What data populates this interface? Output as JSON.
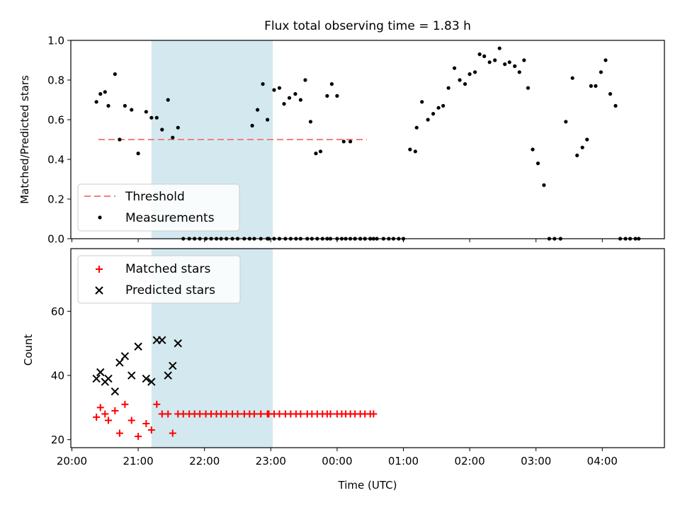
{
  "chart_data": [
    {
      "type": "scatter",
      "title": "Flux total observing time = 1.83 h",
      "xlabel": "",
      "ylabel": "Matched/Predicted stars",
      "x_ticks": [
        "20:00",
        "21:00",
        "22:00",
        "23:00",
        "00:00",
        "01:00",
        "02:00",
        "03:00",
        "04:00"
      ],
      "y_ticks": [
        "0.0",
        "0.2",
        "0.4",
        "0.6",
        "0.8",
        "1.0"
      ],
      "ylim": [
        0,
        1.0
      ],
      "legend_position": "lower-left",
      "highlight_span": {
        "x_start": 1.2,
        "x_end": 3.03,
        "color": "#d3e9ef"
      },
      "threshold": {
        "name": "Threshold",
        "value": 0.5,
        "x_start": 0.4,
        "x_end": 4.45,
        "color": "#f08080"
      },
      "series": [
        {
          "name": "Measurements",
          "color": "#000000",
          "marker": "dot",
          "x": [
            0.37,
            0.43,
            0.5,
            0.55,
            0.65,
            0.72,
            0.8,
            0.9,
            1.0,
            1.12,
            1.2,
            1.28,
            1.36,
            1.45,
            1.52,
            1.6,
            1.68,
            1.77,
            1.85,
            1.93,
            2.02,
            2.1,
            2.18,
            2.25,
            2.33,
            2.42,
            2.5,
            2.6,
            2.68,
            2.75,
            2.85,
            2.95,
            2.97,
            3.05,
            3.13,
            3.22,
            3.3,
            3.38,
            3.45,
            3.55,
            3.62,
            3.7,
            3.78,
            3.85,
            3.9,
            4.0,
            4.07,
            4.13,
            4.2,
            4.27,
            4.35,
            4.42,
            4.5,
            4.55
          ],
          "y": [
            0.69,
            0.73,
            0.74,
            0.67,
            0.83,
            0.5,
            0.67,
            0.65,
            0.43,
            0.64,
            0.61,
            0.61,
            0.55,
            0.7,
            0.51,
            0.56,
            0.0,
            0.0,
            0.0,
            0.0,
            0.0,
            0.0,
            0.0,
            0.0,
            0.0,
            0.0,
            0.0,
            0.0,
            0.0,
            0.0,
            0.0,
            0.0,
            0.0,
            0.0,
            0.0,
            0.0,
            0.0,
            0.0,
            0.0,
            0.0,
            0.0,
            0.0,
            0.0,
            0.0,
            0.0,
            0.0,
            0.0,
            0.0,
            0.0,
            0.0,
            0.0,
            0.0,
            0.0,
            0.0
          ]
        },
        {
          "name": "",
          "color": "#000000",
          "marker": "dot",
          "x": [
            22.72,
            22.8,
            22.88,
            22.95,
            23.05,
            23.13,
            23.2,
            23.28,
            23.37,
            23.45,
            23.52,
            23.6,
            23.68,
            23.75,
            23.85,
            23.92,
            24.0,
            24.1,
            24.2,
            24.27,
            24.35,
            24.42,
            24.5,
            24.6,
            24.7,
            24.78,
            24.85,
            24.93,
            25.0,
            25.1,
            25.18
          ],
          "y": [
            0.57,
            0.65,
            0.78,
            0.6,
            0.75,
            0.76,
            0.68,
            0.71,
            0.73,
            0.7,
            0.8,
            0.59,
            0.43,
            0.44,
            0.72,
            0.78,
            0.72,
            0.49,
            0.49,
            0.0,
            0.0,
            0.0,
            0.0,
            0.0,
            0.0,
            0.0,
            0.0,
            0.0,
            0.0,
            0.45,
            0.44
          ]
        },
        {
          "name": "",
          "color": "#000000",
          "marker": "dot",
          "x": [
            25.2,
            25.28,
            25.37,
            25.45,
            25.53,
            25.6,
            25.68,
            25.77,
            25.85,
            25.93,
            26.0,
            26.08,
            26.15,
            26.22,
            26.3,
            26.38,
            26.45,
            26.53,
            26.6,
            26.68,
            26.75,
            26.82,
            26.88,
            26.95,
            27.03,
            27.12,
            27.2,
            27.28,
            27.37,
            27.45,
            27.55,
            27.62,
            27.7,
            27.77,
            27.83,
            27.9,
            27.98,
            28.05,
            28.12,
            28.2,
            28.27,
            28.35,
            28.42,
            28.5,
            28.55
          ],
          "y": [
            0.56,
            0.69,
            0.6,
            0.63,
            0.66,
            0.67,
            0.76,
            0.86,
            0.8,
            0.78,
            0.83,
            0.84,
            0.93,
            0.92,
            0.89,
            0.9,
            0.96,
            0.88,
            0.89,
            0.87,
            0.84,
            0.9,
            0.76,
            0.45,
            0.38,
            0.27,
            0.0,
            0.0,
            0.0,
            0.59,
            0.81,
            0.42,
            0.46,
            0.5,
            0.77,
            0.77,
            0.84,
            0.9,
            0.73,
            0.67,
            0.0,
            0.0,
            0.0,
            0.0,
            0.0
          ]
        }
      ]
    },
    {
      "type": "scatter",
      "title": "",
      "xlabel": "Time (UTC)",
      "ylabel": "Count",
      "x_ticks": [
        "20:00",
        "21:00",
        "22:00",
        "23:00",
        "00:00",
        "01:00",
        "02:00",
        "03:00",
        "04:00"
      ],
      "y_ticks": [
        "20",
        "40",
        "60"
      ],
      "ylim": [
        17.5,
        79.5
      ],
      "legend_position": "top-left",
      "highlight_span": {
        "x_start": 1.2,
        "x_end": 3.03,
        "color": "#d3e9ef"
      },
      "series": [
        {
          "name": "Matched stars",
          "color": "#ff0000",
          "marker": "plus",
          "x": [
            0.37,
            0.43,
            0.5,
            0.55,
            0.65,
            0.72,
            0.8,
            0.9,
            1.0,
            1.12,
            1.2,
            1.28,
            1.36,
            1.45,
            1.52,
            1.6,
            1.68,
            1.77,
            1.85,
            1.93,
            2.02,
            2.1,
            2.18,
            2.25,
            2.33,
            2.42,
            2.5,
            2.6,
            2.68,
            2.75,
            2.85,
            2.95,
            2.97,
            3.05,
            3.13,
            3.22,
            3.3,
            3.38,
            3.45,
            3.55,
            3.62,
            3.7,
            3.78,
            3.85,
            3.9,
            4.0,
            4.07,
            4.13,
            4.2,
            4.27,
            4.35,
            4.42,
            4.5,
            4.55
          ],
          "y": [
            27,
            30,
            28,
            26,
            29,
            22,
            31,
            26,
            21,
            25,
            23,
            31,
            28,
            28,
            22,
            28,
            28,
            28,
            28,
            28,
            28,
            28,
            28,
            28,
            28,
            28,
            28,
            28,
            28,
            28,
            28,
            28,
            28,
            28,
            28,
            28,
            28,
            28,
            28,
            28,
            28,
            28,
            28,
            28,
            28,
            28,
            28,
            28,
            28,
            28,
            28,
            28,
            28,
            28
          ]
        },
        {
          "name": "Predicted stars",
          "color": "#000000",
          "marker": "x",
          "x": [
            0.37,
            0.43,
            0.5,
            0.55,
            0.65,
            0.72,
            0.8,
            0.9,
            1.0,
            1.12,
            1.2,
            1.28,
            1.36,
            1.45,
            1.52,
            1.6
          ],
          "y": [
            39,
            41,
            38,
            39,
            35,
            44,
            46,
            40,
            49,
            39,
            38,
            51,
            51,
            40,
            43,
            50
          ]
        }
      ]
    }
  ]
}
